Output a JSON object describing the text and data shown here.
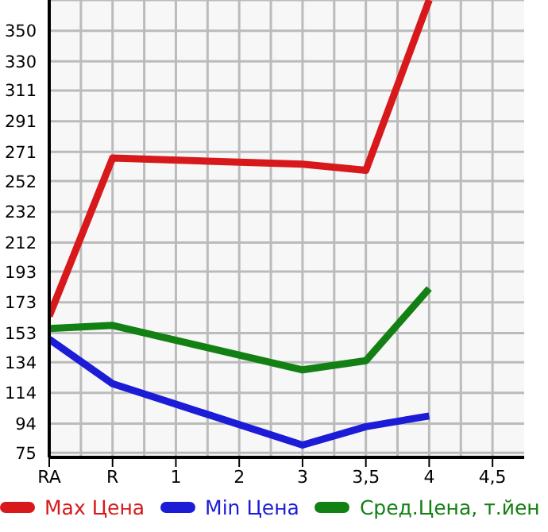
{
  "chart_data": {
    "type": "line",
    "categories": [
      "RA",
      "R",
      "1",
      "2",
      "3",
      "3,5",
      "4",
      "4,5"
    ],
    "series": [
      {
        "name": "Max Цена",
        "color": "#d7191c",
        "values": [
          164,
          267,
          null,
          null,
          263,
          259,
          370,
          null
        ]
      },
      {
        "name": "Min Цена",
        "color": "#1c1cd7",
        "values": [
          149,
          120,
          null,
          null,
          80,
          92,
          99,
          null
        ]
      },
      {
        "name": "Сред.Цена, т.йен",
        "color": "#138013",
        "values": [
          156,
          158,
          null,
          null,
          129,
          135,
          182,
          null
        ]
      }
    ],
    "ylim": [
      72,
      370
    ],
    "yticks": [
      75,
      94,
      114,
      134,
      153,
      173,
      193,
      212,
      232,
      252,
      271,
      291,
      311,
      330,
      350
    ],
    "grid": true,
    "legend": "bottom",
    "marker": "none",
    "line_style": "solid"
  }
}
